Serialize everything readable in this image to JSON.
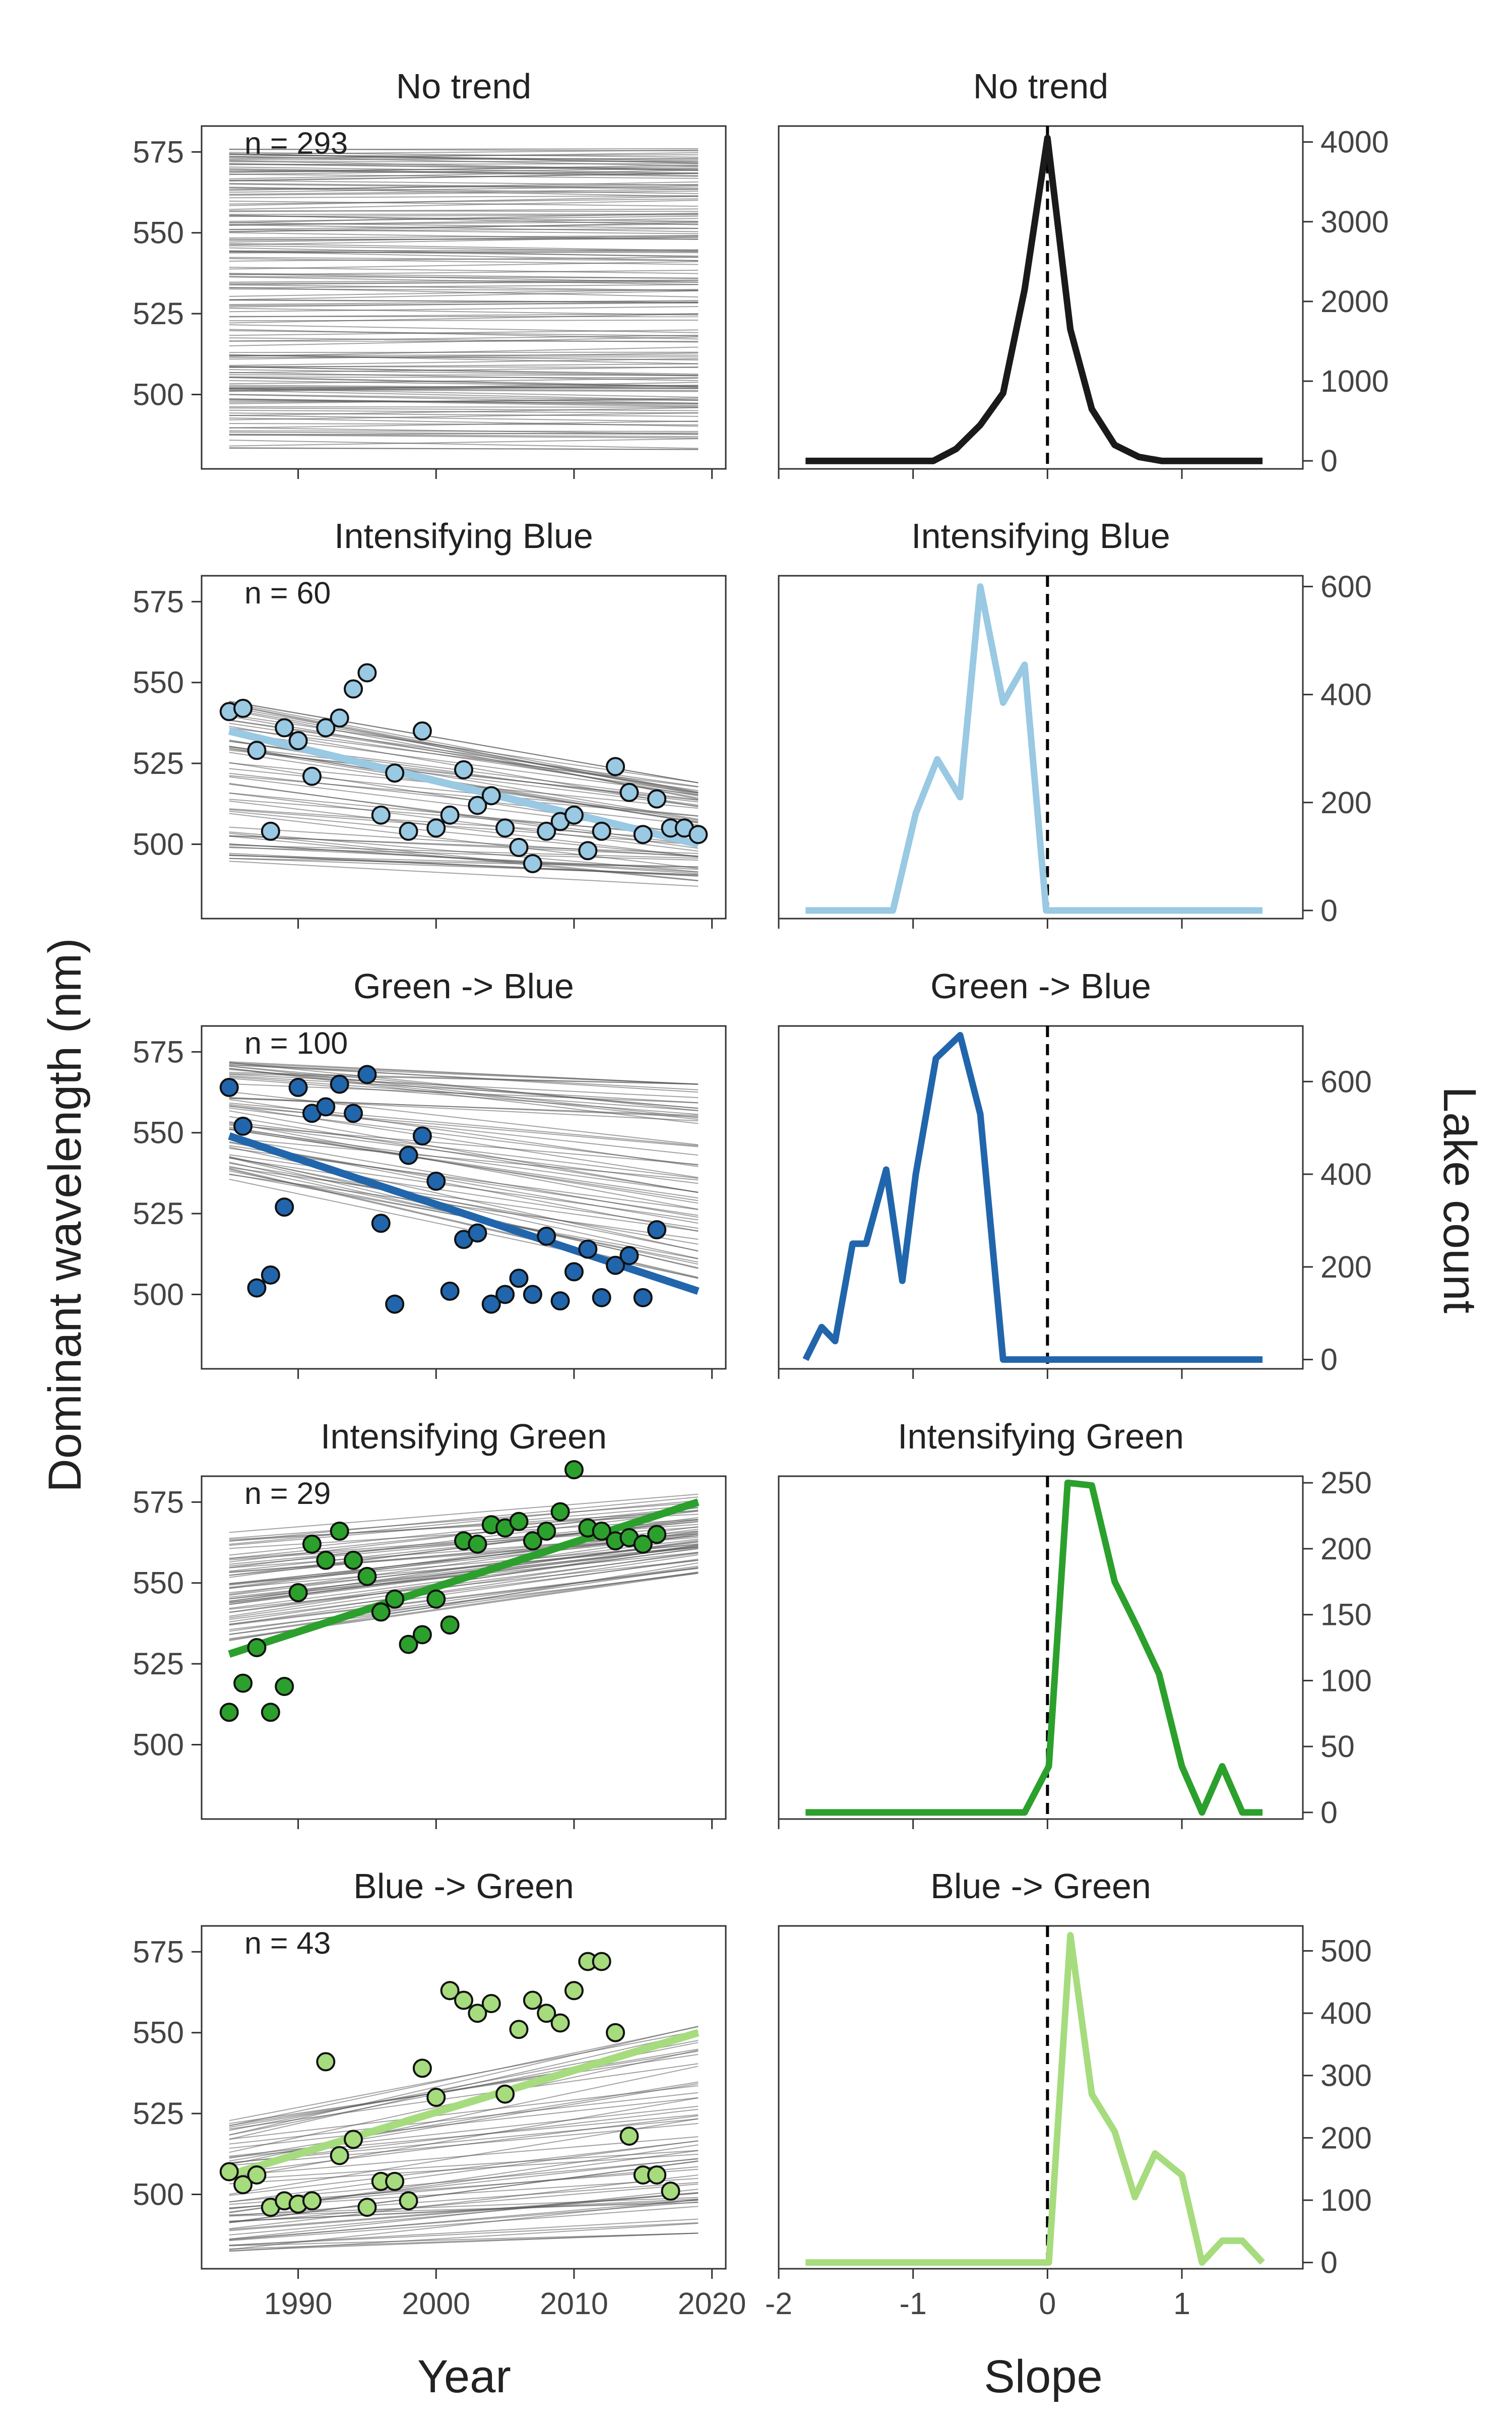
{
  "labels": {
    "ylabel_left": "Dominant wavelength (nm)",
    "ylabel_right": "Lake count",
    "xlabel_left": "Year",
    "xlabel_right": "Slope"
  },
  "chart_data": [
    {
      "type": "line",
      "panel": "time-series",
      "title": "No trend",
      "n_label": "n = 293",
      "xlabel": "Year",
      "ylabel": "Dominant wavelength (nm)",
      "xlim": [
        1983,
        2021
      ],
      "ylim": [
        477,
        583
      ],
      "x_ticks": [
        1990,
        2000,
        2010,
        2020
      ],
      "y_ticks": [
        500,
        525,
        550,
        575
      ],
      "color": "#1a1a1a",
      "trend_lines_description": "293 near-flat grey per-lake trend lines spanning ~485 to ~575 nm",
      "trend_line_range": [
        483,
        576
      ],
      "points": [],
      "fit": null
    },
    {
      "type": "line",
      "panel": "slope-distribution",
      "title": "No trend",
      "xlabel": "Slope",
      "ylabel": "Lake count",
      "xlim": [
        -2,
        1.9
      ],
      "ylim": [
        -100,
        4200
      ],
      "x_ticks": [
        -2,
        -1,
        0,
        1
      ],
      "y_ticks": [
        0,
        1000,
        2000,
        3000,
        4000
      ],
      "color": "#1a1a1a",
      "vline_x": 0,
      "x": [
        -1.8,
        -0.85,
        -0.68,
        -0.5,
        -0.33,
        -0.17,
        0,
        0.17,
        0.33,
        0.5,
        0.68,
        0.85,
        1.0,
        1.6
      ],
      "y": [
        0,
        0,
        150,
        450,
        850,
        2150,
        4050,
        1650,
        650,
        200,
        50,
        0,
        0,
        0
      ]
    },
    {
      "type": "scatter",
      "panel": "time-series",
      "title": "Intensifying Blue",
      "n_label": "n = 60",
      "xlabel": "Year",
      "ylabel": "Dominant wavelength (nm)",
      "xlim": [
        1983,
        2021
      ],
      "ylim": [
        477,
        583
      ],
      "x_ticks": [
        1990,
        2000,
        2010,
        2020
      ],
      "y_ticks": [
        500,
        525,
        550,
        575
      ],
      "color": "#99c9e3",
      "trend_lines_description": "60 grey per-lake trend lines, declining",
      "trend_lines_start": [
        493,
        545
      ],
      "trend_lines_end": [
        487,
        519
      ],
      "points": [
        [
          1985,
          541
        ],
        [
          1986,
          542
        ],
        [
          1987,
          529
        ],
        [
          1988,
          504
        ],
        [
          1989,
          536
        ],
        [
          1990,
          532
        ],
        [
          1991,
          521
        ],
        [
          1992,
          536
        ],
        [
          1993,
          539
        ],
        [
          1994,
          548
        ],
        [
          1995,
          553
        ],
        [
          1996,
          509
        ],
        [
          1997,
          522
        ],
        [
          1998,
          504
        ],
        [
          1999,
          535
        ],
        [
          2000,
          505
        ],
        [
          2001,
          509
        ],
        [
          2002,
          523
        ],
        [
          2003,
          512
        ],
        [
          2004,
          515
        ],
        [
          2005,
          505
        ],
        [
          2006,
          499
        ],
        [
          2007,
          494
        ],
        [
          2008,
          504
        ],
        [
          2009,
          507
        ],
        [
          2010,
          509
        ],
        [
          2011,
          498
        ],
        [
          2012,
          504
        ],
        [
          2013,
          524
        ],
        [
          2014,
          516
        ],
        [
          2015,
          503
        ],
        [
          2016,
          514
        ],
        [
          2017,
          505
        ],
        [
          2018,
          505
        ],
        [
          2019,
          503
        ]
      ],
      "fit": {
        "x": [
          1985,
          2019
        ],
        "y": [
          535,
          500
        ]
      }
    },
    {
      "type": "line",
      "panel": "slope-distribution",
      "title": "Intensifying Blue",
      "xlabel": "Slope",
      "ylabel": "Lake count",
      "xlim": [
        -2,
        1.9
      ],
      "ylim": [
        -15,
        620
      ],
      "x_ticks": [
        -2,
        -1,
        0,
        1
      ],
      "y_ticks": [
        0,
        200,
        400,
        600
      ],
      "color": "#99c9e3",
      "vline_x": 0,
      "x": [
        -1.8,
        -1.15,
        -0.98,
        -0.82,
        -0.65,
        -0.5,
        -0.33,
        -0.17,
        -0.01,
        0.01,
        1.6
      ],
      "y": [
        0,
        0,
        180,
        280,
        210,
        600,
        385,
        455,
        0,
        0,
        0
      ]
    },
    {
      "type": "scatter",
      "panel": "time-series",
      "title": "Green -> Blue",
      "n_label": "n = 100",
      "xlabel": "Year",
      "ylabel": "Dominant wavelength (nm)",
      "xlim": [
        1983,
        2021
      ],
      "ylim": [
        477,
        583
      ],
      "x_ticks": [
        1990,
        2000,
        2010,
        2020
      ],
      "y_ticks": [
        500,
        525,
        550,
        575
      ],
      "color": "#2166ac",
      "trend_lines_description": "100 grey per-lake trend lines, declining",
      "trend_lines_start": [
        535,
        572
      ],
      "trend_lines_end": [
        505,
        565
      ],
      "points": [
        [
          1985,
          564
        ],
        [
          1986,
          552
        ],
        [
          1987,
          502
        ],
        [
          1988,
          506
        ],
        [
          1989,
          527
        ],
        [
          1990,
          564
        ],
        [
          1991,
          556
        ],
        [
          1992,
          558
        ],
        [
          1993,
          565
        ],
        [
          1994,
          556
        ],
        [
          1995,
          568
        ],
        [
          1996,
          522
        ],
        [
          1997,
          497
        ],
        [
          1998,
          543
        ],
        [
          1999,
          549
        ],
        [
          2000,
          535
        ],
        [
          2001,
          501
        ],
        [
          2002,
          517
        ],
        [
          2003,
          519
        ],
        [
          2004,
          497
        ],
        [
          2005,
          500
        ],
        [
          2006,
          505
        ],
        [
          2007,
          500
        ],
        [
          2008,
          518
        ],
        [
          2009,
          498
        ],
        [
          2010,
          507
        ],
        [
          2011,
          514
        ],
        [
          2012,
          499
        ],
        [
          2013,
          509
        ],
        [
          2014,
          512
        ],
        [
          2015,
          499
        ],
        [
          2016,
          520
        ]
      ],
      "fit": {
        "x": [
          1985,
          2019
        ],
        "y": [
          549,
          501
        ]
      }
    },
    {
      "type": "line",
      "panel": "slope-distribution",
      "title": "Green -> Blue",
      "xlabel": "Slope",
      "ylabel": "Lake count",
      "xlim": [
        -2,
        1.9
      ],
      "ylim": [
        -20,
        720
      ],
      "x_ticks": [
        -2,
        -1,
        0,
        1
      ],
      "y_ticks": [
        0,
        200,
        400,
        600
      ],
      "color": "#2166ac",
      "vline_x": 0,
      "x": [
        -1.8,
        -1.68,
        -1.58,
        -1.45,
        -1.35,
        -1.2,
        -1.08,
        -0.98,
        -0.83,
        -0.65,
        -0.5,
        -0.33,
        -0.17,
        -0.01,
        0.01,
        1.6
      ],
      "y": [
        0,
        70,
        40,
        250,
        250,
        410,
        170,
        400,
        650,
        700,
        530,
        0,
        0,
        0,
        0,
        0
      ]
    },
    {
      "type": "scatter",
      "panel": "time-series",
      "title": "Intensifying Green",
      "n_label": "n = 29",
      "xlabel": "Year",
      "ylabel": "Dominant wavelength (nm)",
      "xlim": [
        1983,
        2021
      ],
      "ylim": [
        477,
        583
      ],
      "x_ticks": [
        1990,
        2000,
        2010,
        2020
      ],
      "y_ticks": [
        500,
        525,
        550,
        575
      ],
      "color": "#2ca02c",
      "trend_lines_description": "29 grey per-lake trend lines, rising",
      "trend_lines_start": [
        532,
        568
      ],
      "trend_lines_end": [
        553,
        578
      ],
      "points": [
        [
          1985,
          510
        ],
        [
          1986,
          519
        ],
        [
          1987,
          530
        ],
        [
          1988,
          510
        ],
        [
          1989,
          518
        ],
        [
          1990,
          547
        ],
        [
          1991,
          562
        ],
        [
          1992,
          557
        ],
        [
          1993,
          566
        ],
        [
          1994,
          557
        ],
        [
          1995,
          552
        ],
        [
          1996,
          541
        ],
        [
          1997,
          545
        ],
        [
          1998,
          531
        ],
        [
          1999,
          534
        ],
        [
          2000,
          545
        ],
        [
          2001,
          537
        ],
        [
          2002,
          563
        ],
        [
          2003,
          562
        ],
        [
          2004,
          568
        ],
        [
          2005,
          567
        ],
        [
          2006,
          569
        ],
        [
          2007,
          563
        ],
        [
          2008,
          566
        ],
        [
          2009,
          572
        ],
        [
          2010,
          585
        ],
        [
          2011,
          567
        ],
        [
          2012,
          566
        ],
        [
          2013,
          563
        ],
        [
          2014,
          564
        ],
        [
          2015,
          562
        ],
        [
          2016,
          565
        ]
      ],
      "fit": {
        "x": [
          1985,
          2019
        ],
        "y": [
          528,
          575
        ]
      }
    },
    {
      "type": "line",
      "panel": "slope-distribution",
      "title": "Intensifying Green",
      "xlabel": "Slope",
      "ylabel": "Lake count",
      "xlim": [
        -2,
        1.9
      ],
      "ylim": [
        -5,
        255
      ],
      "x_ticks": [
        -2,
        -1,
        0,
        1
      ],
      "y_ticks": [
        0,
        50,
        100,
        150,
        200,
        250
      ],
      "color": "#2ca02c",
      "vline_x": 0,
      "x": [
        -1.8,
        -0.17,
        0.01,
        0.15,
        0.33,
        0.5,
        0.67,
        0.83,
        1.0,
        1.15,
        1.3,
        1.45,
        1.6
      ],
      "y": [
        0,
        0,
        35,
        250,
        248,
        175,
        140,
        105,
        35,
        0,
        35,
        0,
        0
      ]
    },
    {
      "type": "scatter",
      "panel": "time-series",
      "title": "Blue -> Green",
      "n_label": "n = 43",
      "xlabel": "Year",
      "ylabel": "Dominant wavelength (nm)",
      "xlim": [
        1983,
        2021
      ],
      "ylim": [
        477,
        583
      ],
      "x_ticks": [
        1990,
        2000,
        2010,
        2020
      ],
      "y_ticks": [
        500,
        525,
        550,
        575
      ],
      "color": "#a6dc7d",
      "trend_lines_description": "43 grey per-lake trend lines, rising",
      "trend_lines_start": [
        482,
        523
      ],
      "trend_lines_end": [
        488,
        552
      ],
      "points": [
        [
          1985,
          507
        ],
        [
          1986,
          503
        ],
        [
          1987,
          506
        ],
        [
          1988,
          496
        ],
        [
          1989,
          498
        ],
        [
          1990,
          497
        ],
        [
          1991,
          498
        ],
        [
          1992,
          541
        ],
        [
          1993,
          512
        ],
        [
          1994,
          517
        ],
        [
          1995,
          496
        ],
        [
          1996,
          504
        ],
        [
          1997,
          504
        ],
        [
          1998,
          498
        ],
        [
          1999,
          539
        ],
        [
          2000,
          530
        ],
        [
          2001,
          563
        ],
        [
          2002,
          560
        ],
        [
          2003,
          556
        ],
        [
          2004,
          559
        ],
        [
          2005,
          531
        ],
        [
          2006,
          551
        ],
        [
          2007,
          560
        ],
        [
          2008,
          556
        ],
        [
          2009,
          553
        ],
        [
          2010,
          563
        ],
        [
          2011,
          572
        ],
        [
          2012,
          572
        ],
        [
          2013,
          550
        ],
        [
          2014,
          518
        ],
        [
          2015,
          506
        ],
        [
          2016,
          506
        ],
        [
          2017,
          501
        ]
      ],
      "fit": {
        "x": [
          1985,
          2019
        ],
        "y": [
          506,
          550
        ]
      }
    },
    {
      "type": "line",
      "panel": "slope-distribution",
      "title": "Blue -> Green",
      "xlabel": "Slope",
      "ylabel": "Lake count",
      "xlim": [
        -2,
        1.9
      ],
      "ylim": [
        -10,
        540
      ],
      "x_ticks": [
        -2,
        -1,
        0,
        1
      ],
      "y_ticks": [
        0,
        100,
        200,
        300,
        400,
        500
      ],
      "color": "#a6dc7d",
      "vline_x": 0,
      "x": [
        -1.8,
        -0.01,
        0.01,
        0.17,
        0.33,
        0.5,
        0.65,
        0.8,
        1.0,
        1.15,
        1.3,
        1.45,
        1.6
      ],
      "y": [
        0,
        0,
        0,
        525,
        270,
        210,
        105,
        175,
        140,
        0,
        35,
        35,
        0
      ]
    }
  ]
}
